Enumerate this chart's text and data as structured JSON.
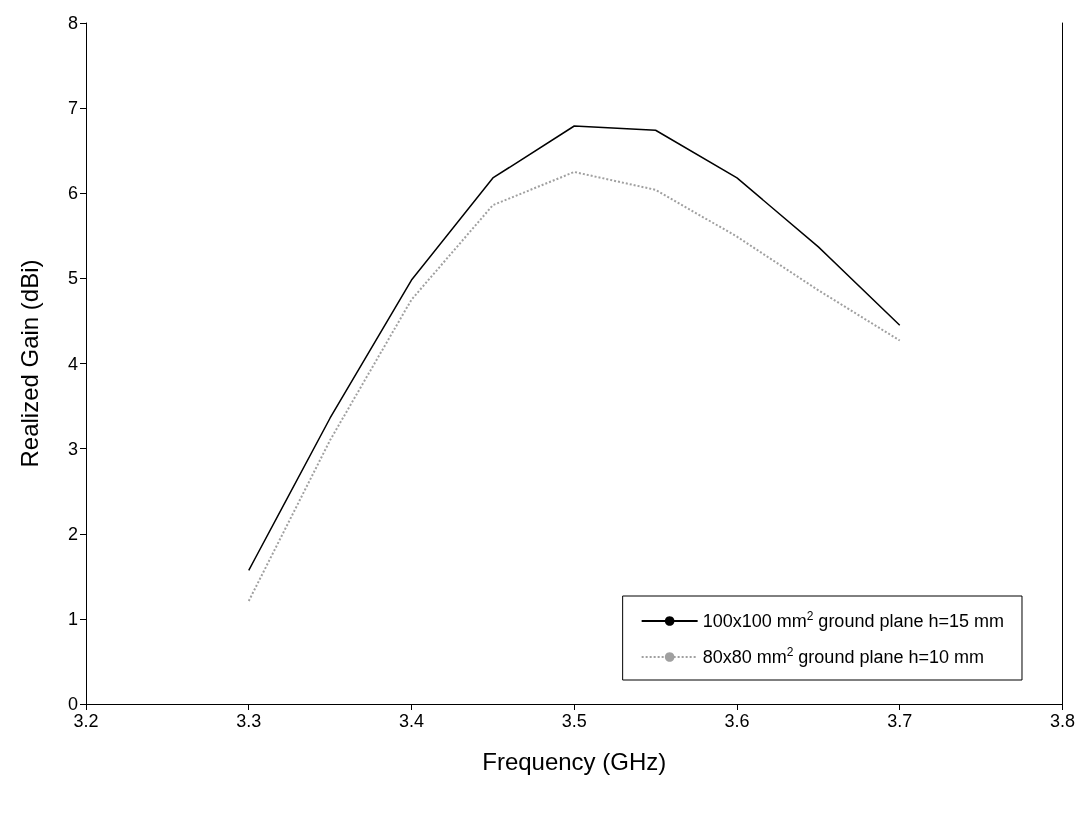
{
  "chart_data": {
    "type": "line",
    "xlabel": "Frequency (GHz)",
    "ylabel": "Realized Gain (dBi)",
    "x": [
      3.3,
      3.35,
      3.4,
      3.45,
      3.5,
      3.55,
      3.6,
      3.65,
      3.7
    ],
    "series": [
      {
        "name": "100x100 mm$^{2}$ ground plane h=15 mm",
        "color": "#000000",
        "line_style": "solid",
        "values": [
          1.57,
          3.36,
          4.98,
          6.18,
          6.79,
          6.74,
          6.18,
          5.37,
          4.45
        ]
      },
      {
        "name": "80x80 mm$^{2}$ ground plane h=10 mm",
        "color": "#a0a0a0",
        "line_style": "dotted",
        "values": [
          1.21,
          3.1,
          4.75,
          5.86,
          6.25,
          6.04,
          5.49,
          4.86,
          4.27
        ]
      }
    ],
    "xlim": [
      3.2,
      3.8
    ],
    "xticks": [
      3.2,
      3.3,
      3.4,
      3.5,
      3.6,
      3.7,
      3.8
    ],
    "ylim": [
      0,
      8
    ],
    "yticks": [
      0,
      1,
      2,
      3,
      4,
      5,
      6,
      7,
      8
    ],
    "grid": false,
    "legend": "bottom right",
    "marker": "none"
  }
}
